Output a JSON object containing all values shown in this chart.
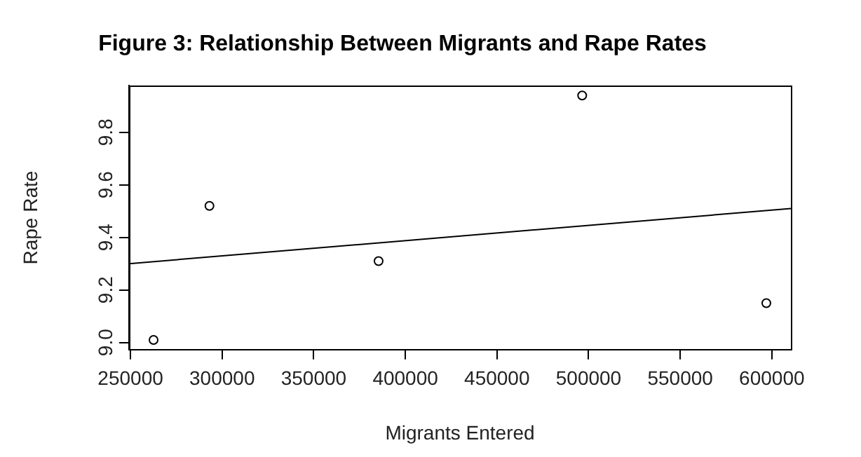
{
  "chart_data": {
    "type": "scatter",
    "title": "Figure 3: Relationship Between Migrants and Rape Rates",
    "xlabel": "Migrants Entered",
    "ylabel": "Rape Rate",
    "x": [
      262600,
      293100,
      385400,
      496500,
      597000
    ],
    "series": [
      {
        "color": "#000000",
        "values": [
          9.01,
          9.52,
          9.31,
          9.94,
          9.15
        ]
      },
      {
        "type": "line",
        "color": "#000000",
        "marker": "none",
        "x": [
          249200,
          610400
        ],
        "values": [
          9.3,
          9.51
        ]
      }
    ],
    "xlim": [
      249200,
      610400
    ],
    "xticks": [
      250000,
      300000,
      350000,
      400000,
      450000,
      500000,
      550000,
      600000
    ],
    "ylim": [
      8.973,
      9.977
    ],
    "yticks": [
      {
        "value": 9.0,
        "label": "9.0"
      },
      9.2,
      9.4,
      9.6,
      9.8
    ],
    "marker": "circle",
    "grid": false,
    "legend": false
  }
}
